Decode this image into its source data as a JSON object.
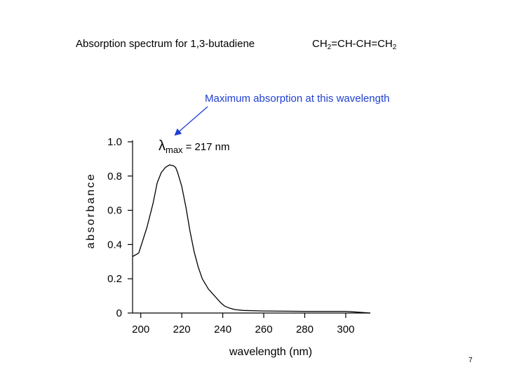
{
  "slide": {
    "title": "Absorption spectrum for 1,3-butadiene",
    "formula_parts": [
      "CH",
      "2",
      "=CH-CH=CH",
      "2"
    ],
    "page_number": "7"
  },
  "chart_data": {
    "type": "line",
    "xlabel": "wavelength (nm)",
    "ylabel": "absorbance",
    "xlim": [
      196,
      312
    ],
    "ylim": [
      0,
      1.0
    ],
    "x_ticks": [
      200,
      220,
      240,
      260,
      280,
      300
    ],
    "y_ticks": [
      0,
      0.2,
      0.4,
      0.6,
      0.8,
      1.0
    ],
    "y_tick_labels": [
      "0",
      "0.2",
      "0.4",
      "0.6",
      "0.8",
      "1.0"
    ],
    "grid": false,
    "series": [
      {
        "color": "#000000",
        "x": [
          196,
          199,
          203,
          206,
          208,
          210,
          212,
          214,
          216,
          217,
          218,
          220,
          222,
          224,
          226,
          228,
          230,
          233,
          236,
          239,
          241,
          243,
          246,
          250,
          260,
          280,
          300,
          306,
          312
        ],
        "y": [
          0.33,
          0.35,
          0.5,
          0.64,
          0.76,
          0.82,
          0.85,
          0.865,
          0.86,
          0.85,
          0.82,
          0.74,
          0.62,
          0.48,
          0.36,
          0.27,
          0.2,
          0.14,
          0.1,
          0.06,
          0.04,
          0.03,
          0.02,
          0.015,
          0.012,
          0.01,
          0.01,
          0.005,
          0.0
        ]
      }
    ],
    "annotations": {
      "lambda_symbol": "λ",
      "lambda_subscript": "max",
      "lambda_value": "= 217 nm",
      "arrow_caption": "Maximum absorption at this wavelength",
      "arrow_color": "#1e3fd0"
    }
  }
}
